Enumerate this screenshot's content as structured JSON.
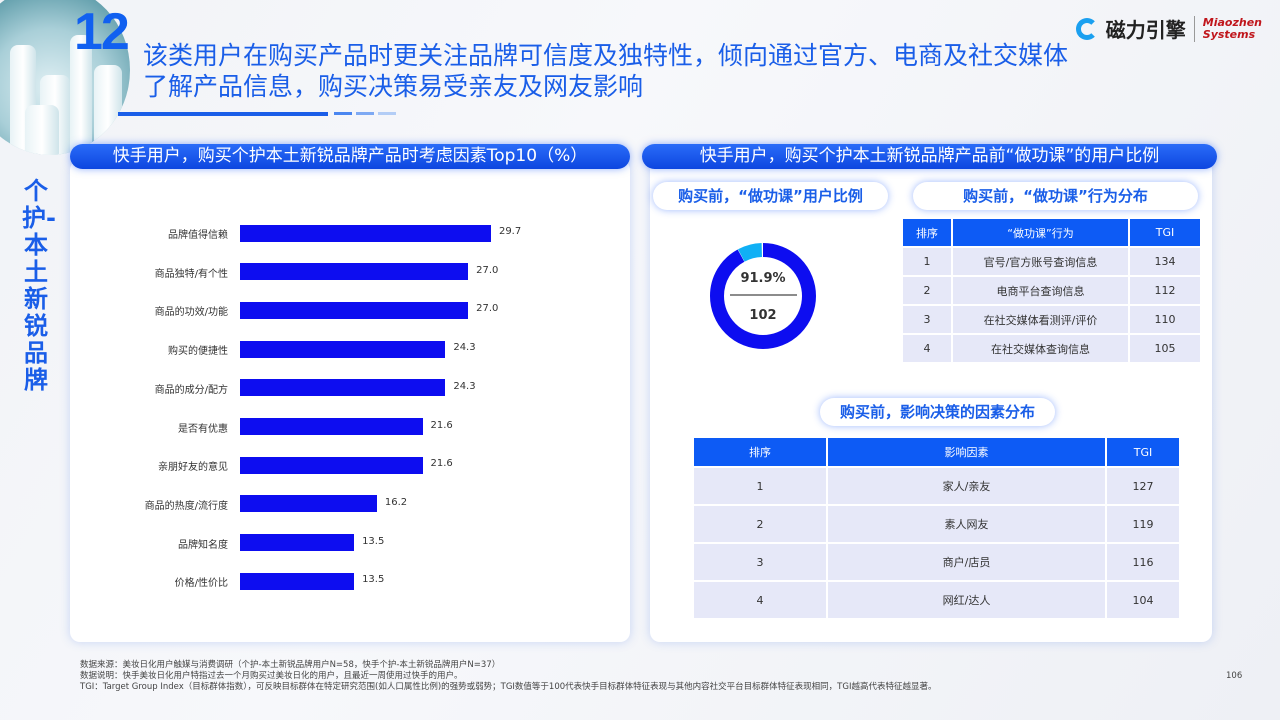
{
  "header": {
    "number": "12",
    "title": "该类用户在购买产品时更关注品牌可信度及独特性，倾向通过官方、电商及社交媒体了解产品信息，购买决策易受亲友及网友影响",
    "logo_cn": "磁力引擎",
    "logo_en_line1": "Miaozhen",
    "logo_en_line2": "Systems"
  },
  "side_label": "个护-本土新锐品牌",
  "colors": {
    "accent": "#1a5ee8",
    "bar": "#0d0df0",
    "donut_main": "#0d0df0",
    "donut_rest": "#10b0f5",
    "table_header": "#0d5bf5"
  },
  "left_panel": {
    "title": "快手用户，购买个护本土新锐品牌产品时考虑因素Top10（%）"
  },
  "chart_data": {
    "type": "bar",
    "orientation": "horizontal",
    "categories": [
      "品牌值得信赖",
      "商品独特/有个性",
      "商品的功效/功能",
      "购买的便捷性",
      "商品的成分/配方",
      "是否有优惠",
      "亲朋好友的意见",
      "商品的热度/流行度",
      "品牌知名度",
      "价格/性价比"
    ],
    "values": [
      29.7,
      27.0,
      27.0,
      24.3,
      24.3,
      21.6,
      21.6,
      16.2,
      13.5,
      13.5
    ],
    "value_labels": [
      "29.7",
      "27.0",
      "27.0",
      "24.3",
      "24.3",
      "21.6",
      "21.6",
      "16.2",
      "13.5",
      "13.5"
    ],
    "title": "快手用户，购买个护本土新锐品牌产品时考虑因素Top10（%）",
    "grid": false
  },
  "right_panel": {
    "title": "快手用户，购买个护本土新锐品牌产品前“做功课”的用户比例",
    "donut": {
      "title": "购买前，“做功课”用户比例",
      "percent": 91.9,
      "percent_label": "91.9%",
      "tgi": "102"
    },
    "behavior": {
      "title": "购买前，“做功课”行为分布",
      "headers": [
        "排序",
        "“做功课”行为",
        "TGI"
      ],
      "rows": [
        [
          "1",
          "官号/官方账号查询信息",
          "134"
        ],
        [
          "2",
          "电商平台查询信息",
          "112"
        ],
        [
          "3",
          "在社交媒体看测评/评价",
          "110"
        ],
        [
          "4",
          "在社交媒体查询信息",
          "105"
        ]
      ]
    },
    "factors": {
      "title": "购买前，影响决策的因素分布",
      "headers": [
        "排序",
        "影响因素",
        "TGI"
      ],
      "rows": [
        [
          "1",
          "家人/亲友",
          "127"
        ],
        [
          "2",
          "素人网友",
          "119"
        ],
        [
          "3",
          "商户/店员",
          "116"
        ],
        [
          "4",
          "网红/达人",
          "104"
        ]
      ]
    }
  },
  "footer": {
    "lines": [
      "数据来源：美妆日化用户触媒与消费调研（个护-本土新锐品牌用户N=58，快手个护-本土新锐品牌用户N=37）",
      "数据说明：快手美妆日化用户特指过去一个月购买过美妆日化的用户，且最近一周使用过快手的用户。",
      "TGI：Target Group Index（目标群体指数），可反映目标群体在特定研究范围(如人口属性比例)的强势或弱势；TGI数值等于100代表快手目标群体特征表现与其他内容社交平台目标群体特征表现相同，TGI越高代表特征越显著。"
    ],
    "page": "106"
  }
}
